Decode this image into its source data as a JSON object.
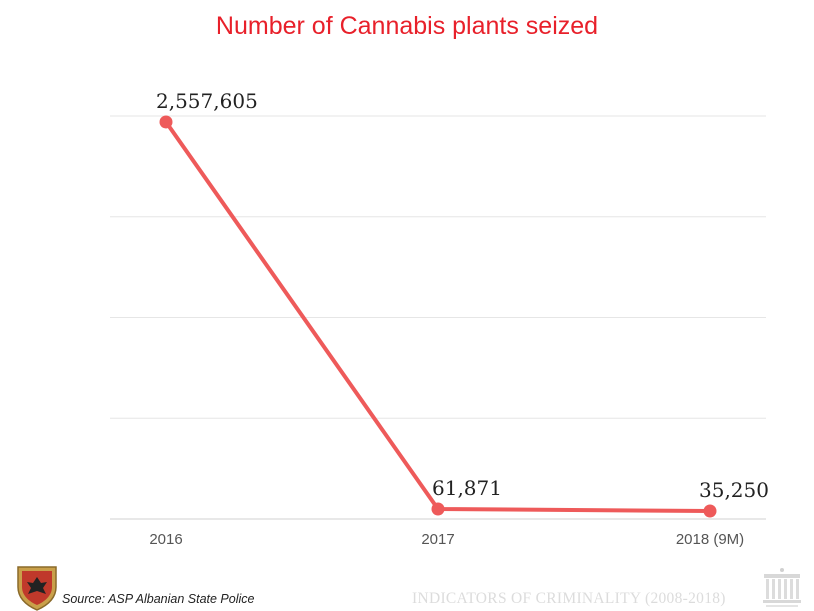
{
  "chart_data": {
    "type": "line",
    "title": "Number of Cannabis plants seized",
    "categories": [
      "2016",
      "2017",
      "2018 (9M)"
    ],
    "series": [
      {
        "values": [
          2557605,
          61871,
          35250
        ],
        "color": "#ee5a5a"
      }
    ],
    "data_labels": [
      "2,557,605",
      "61,871",
      "35,250"
    ],
    "ylim": [
      0,
      2500000
    ],
    "grid": true,
    "title_color": "#e8202a"
  },
  "footer": {
    "source": "Source: ASP Albanian State Police",
    "report": "INDICATORS OF CRIMINALITY (2008-2018)"
  },
  "logos": {
    "left": "police-shield-logo-icon",
    "right": "government-building-logo-icon"
  }
}
